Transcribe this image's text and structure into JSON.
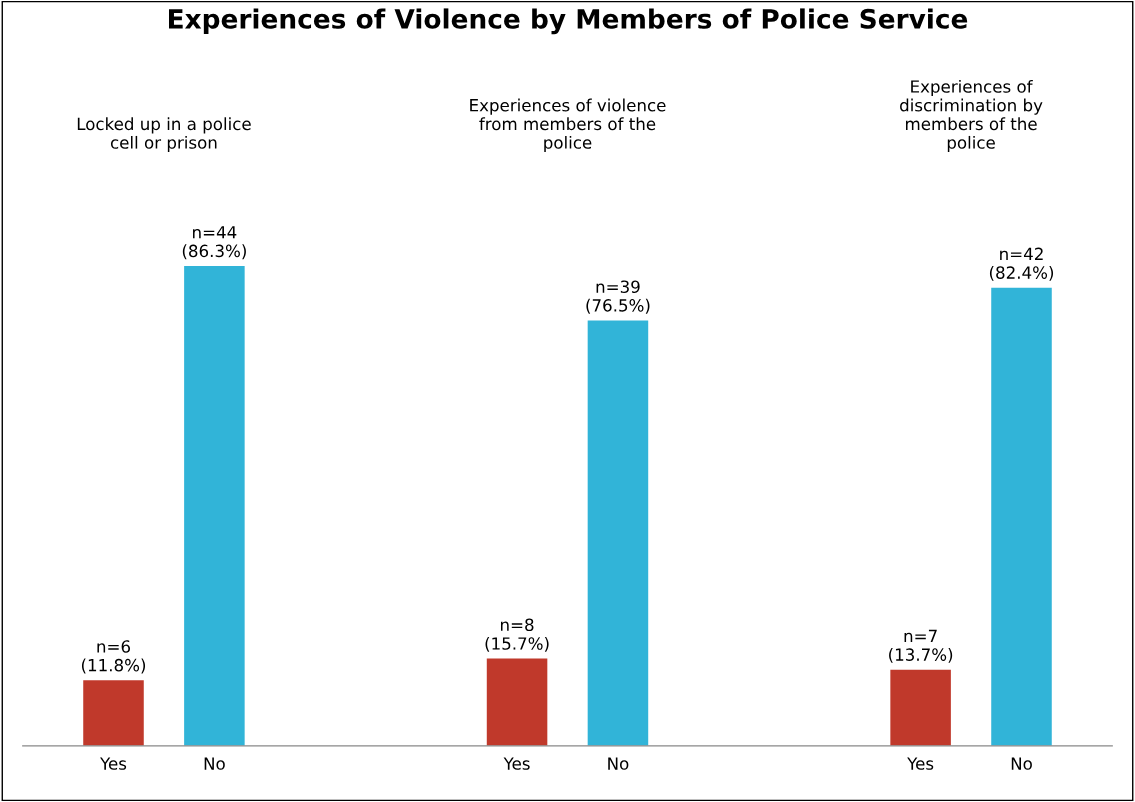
{
  "chart_data": {
    "type": "bar",
    "title": "Experiences of Violence by Members of Police Service",
    "categories": [
      "Yes",
      "No",
      null,
      null,
      "Yes",
      "No",
      null,
      null,
      "Yes",
      "No"
    ],
    "values": [
      11.8,
      86.3,
      null,
      null,
      15.7,
      76.5,
      null,
      null,
      13.7,
      82.4
    ],
    "colors": [
      "#c0392b",
      "#31b4d8",
      "#c0392b",
      "#31b4d8",
      "#c0392b",
      "#31b4d8",
      "#c0392b",
      "#31b4d8",
      "#c0392b",
      "#31b4d8"
    ],
    "value_labels": [
      "n=6\n(11.8%)",
      "n=44\n(86.3%)",
      null,
      null,
      "n=8\n(15.7%)",
      "n=39\n(76.5%)",
      null,
      null,
      "n=7\n(13.7%)",
      "n=42\n(82.4%)"
    ],
    "annotations": [
      "Locked up in a police\ncell or prison",
      "Experiences of violence\nfrom members of the\npolice",
      "Experiences of\ndiscrimination by\nmembers of the\npolice"
    ],
    "grid": false,
    "legend": false
  }
}
